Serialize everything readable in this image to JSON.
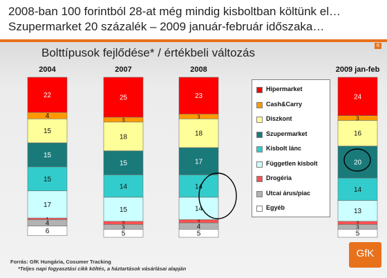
{
  "headline": {
    "line1": "2008-ban 100 forintból 28-at még mindig kisboltban költünk el…",
    "line2": "Szupermarket 20 százalék – 2009 január-február időszaka…"
  },
  "page_number": "6",
  "logo_text": "GfK",
  "footer": {
    "source": "Forrás:  GfK Hungária, Cosumer Tracking",
    "note": "*Teljes napi fogyasztási cikk költés, a háztartások vásárlásai alapján"
  },
  "chart_data": {
    "type": "bar",
    "stacked": true,
    "title": "Bolttípusok fejlődése* / értékbeli változás",
    "categories": [
      "2004",
      "2007",
      "2008",
      "2009 jan-feb"
    ],
    "series": [
      {
        "name": "Hipermarket",
        "color": "#ff0000",
        "values": [
          22,
          25,
          23,
          24
        ],
        "labels": [
          "22",
          "25",
          "23",
          "24"
        ]
      },
      {
        "name": "Cash&Carry",
        "color": "#ff9900",
        "values": [
          4,
          3,
          3,
          3
        ],
        "labels": [
          "4",
          "3",
          "3",
          "3"
        ]
      },
      {
        "name": "Diszkont",
        "color": "#ffff99",
        "values": [
          15,
          18,
          18,
          16
        ],
        "labels": [
          "15",
          "18",
          "18",
          "16"
        ]
      },
      {
        "name": "Szupermarket",
        "color": "#1a7a7a",
        "values": [
          15,
          15,
          17,
          20
        ],
        "labels": [
          "15",
          "15",
          "17",
          "20"
        ]
      },
      {
        "name": "Kisbolt lánc",
        "color": "#33cccc",
        "values": [
          15,
          14,
          14,
          14
        ],
        "labels": [
          "15",
          "14",
          "14",
          "14"
        ]
      },
      {
        "name": "Független kisbolt",
        "color": "#ccffff",
        "values": [
          17,
          15,
          14,
          13
        ],
        "labels": [
          "17",
          "15",
          "14",
          "13"
        ]
      },
      {
        "name": "Drogéria",
        "color": "#ff5050",
        "values": [
          1,
          2,
          2,
          2
        ],
        "labels": [
          "1",
          "2",
          "2",
          "2"
        ]
      },
      {
        "name": "Utcai árus/piac",
        "color": "#b2b2b2",
        "values": [
          4,
          3,
          4,
          3
        ],
        "labels": [
          "4",
          "3",
          "4",
          "3"
        ]
      },
      {
        "name": "Egyéb",
        "color": "#ffffff",
        "values": [
          6,
          5,
          5,
          5
        ],
        "labels": [
          "6",
          "5",
          "5",
          "5"
        ]
      }
    ],
    "ylim": [
      0,
      100
    ],
    "legend_position": "right"
  }
}
